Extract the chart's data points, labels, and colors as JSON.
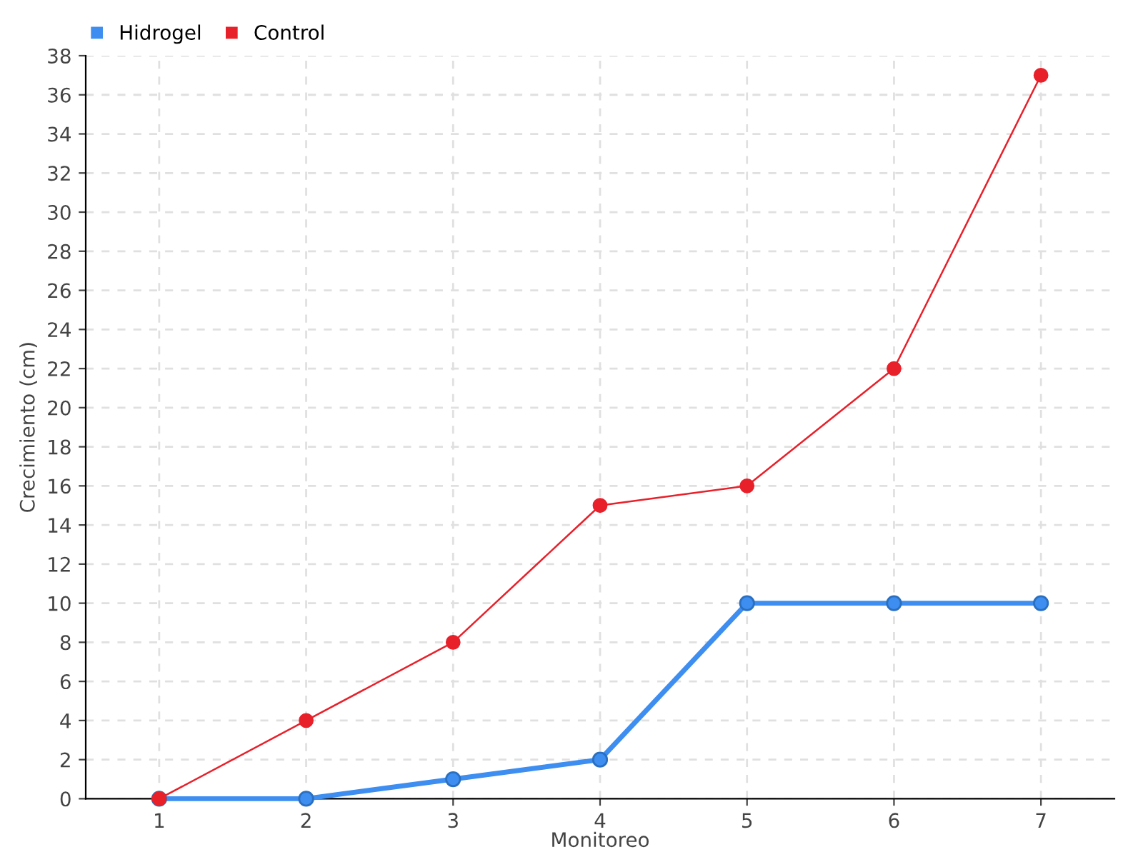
{
  "chart_data": {
    "type": "line",
    "xlabel": "Monitoreo",
    "ylabel": "Crecimiento (cm)",
    "x": [
      1,
      2,
      3,
      4,
      5,
      6,
      7
    ],
    "series": [
      {
        "name": "Hidrogel",
        "color": "#3d8ef0",
        "values": [
          0,
          0,
          1,
          2,
          10,
          10,
          10
        ]
      },
      {
        "name": "Control",
        "color": "#e8202a",
        "values": [
          0,
          4,
          8,
          15,
          16,
          22,
          37
        ]
      }
    ],
    "xlim": [
      0.5,
      7.5
    ],
    "xticks": [
      1,
      2,
      3,
      4,
      5,
      6,
      7
    ],
    "ylim": [
      0,
      38
    ],
    "yticks": [
      0,
      2,
      4,
      6,
      8,
      10,
      12,
      14,
      16,
      18,
      20,
      22,
      24,
      26,
      28,
      30,
      32,
      34,
      36,
      38
    ],
    "grid": true,
    "legend": "top left",
    "marker": "circle",
    "line_style": "solid"
  }
}
